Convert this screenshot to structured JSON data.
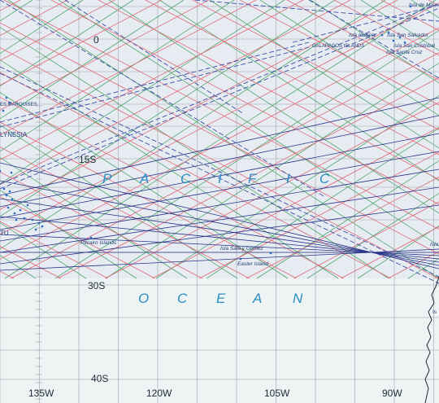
{
  "map": {
    "latitude_labels": [
      "0",
      "15S",
      "30S",
      "40S"
    ],
    "longitude_labels": [
      "135W",
      "120W",
      "105W",
      "90W"
    ],
    "ocean_words": {
      "pacific_letters": [
        "P",
        "A",
        "C",
        "I",
        "F",
        "I",
        "C"
      ],
      "ocean_letters": [
        "O",
        "C",
        "E",
        "A",
        "N"
      ]
    },
    "places": {
      "marquises": "ES MARQUISES",
      "polynesia": "LYNESIA",
      "tuamotu": "TU",
      "pitcairn": "Pitcairn Islands",
      "sala_y_gomez": "Isla Sala y Gomez",
      "easter": "Easter Island",
      "galapagos": "GALAPAGOS ISLANDS",
      "isabela": "Isla Isabela",
      "san_salvador": "Isla San Salvador",
      "san_cristobal": "Isla San Cristobal",
      "santa_cruz": "Isla Santa Cruz",
      "isla_de_ma": "Isla de Ma",
      "isla_right": "Isla",
      "is_right": "Is"
    },
    "colors": {
      "background": "#eef3f3",
      "tinted_zone": "#e7ecf2",
      "grid": "#9aa3ab",
      "green_lines": "#4fa66a",
      "red_lines": "#e06a78",
      "navy_lines": "#27338a",
      "route_lines": "#3a4fa8",
      "ocean_text": "#2a8fc4"
    }
  }
}
